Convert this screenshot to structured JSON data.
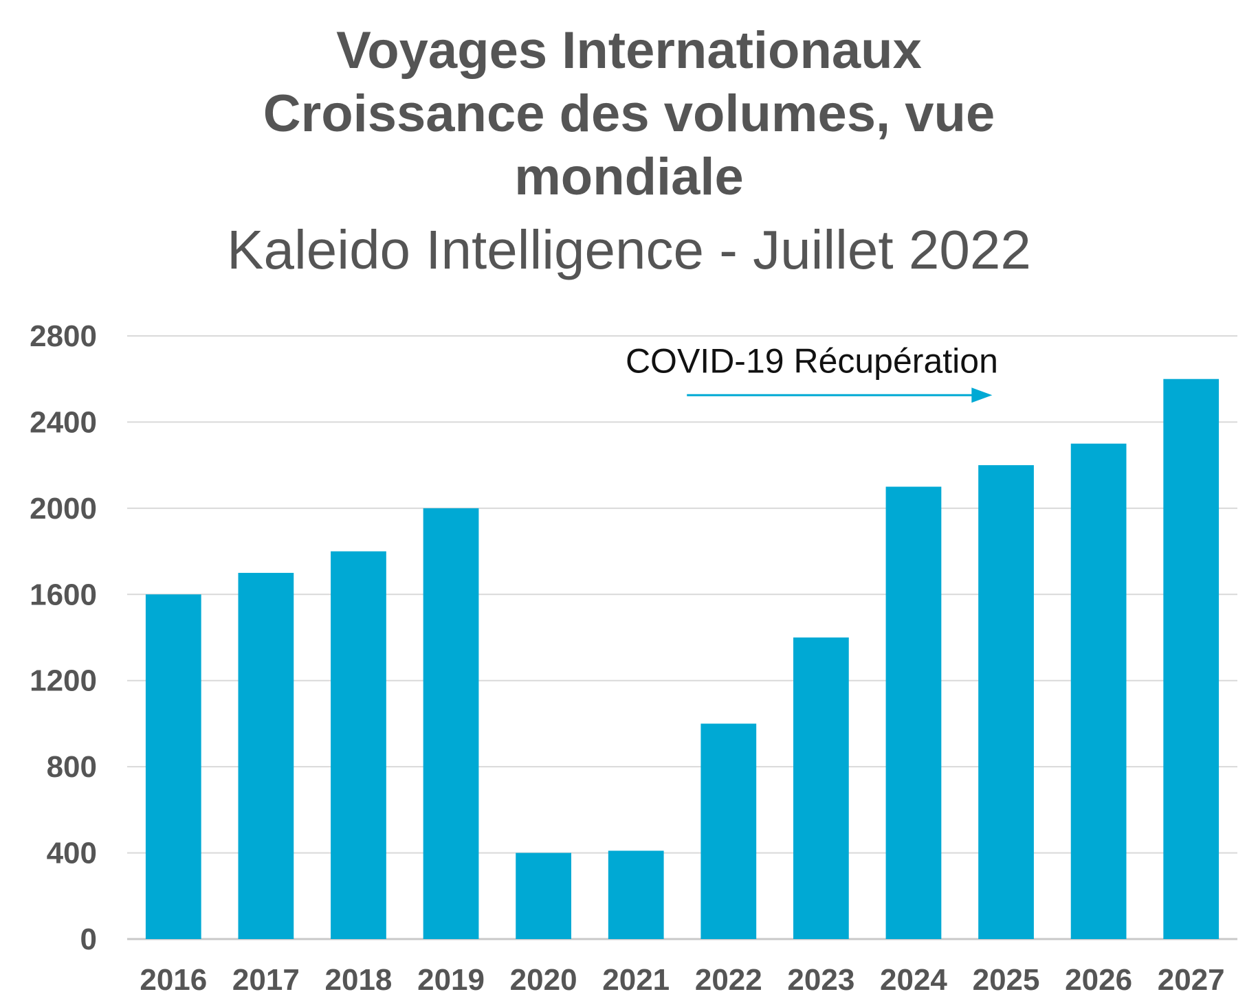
{
  "chart_data": {
    "type": "bar",
    "title_lines": [
      "Voyages Internationaux",
      "Croissance des volumes, vue",
      "mondiale"
    ],
    "subtitle": "Kaleido Intelligence - Juillet 2022",
    "categories": [
      "2016",
      "2017",
      "2018",
      "2019",
      "2020",
      "2021",
      "2022",
      "2023",
      "2024",
      "2025",
      "2026",
      "2027"
    ],
    "values": [
      1600,
      1700,
      1800,
      2000,
      400,
      410,
      1000,
      1400,
      2100,
      2200,
      2300,
      2600
    ],
    "ylim": [
      0,
      2800
    ],
    "yticks": [
      0,
      400,
      800,
      1200,
      1600,
      2000,
      2400,
      2800
    ],
    "grid": true,
    "bar_color": "#00A9D4",
    "annotation": {
      "text": "COVID-19 Récupération",
      "arrow_color": "#00A9D4",
      "arrow_from_x": 2021.55,
      "arrow_to_x": 2024.85,
      "arrow_y": 2525,
      "text_y": 2630,
      "text_center_x": 2022.9
    }
  }
}
